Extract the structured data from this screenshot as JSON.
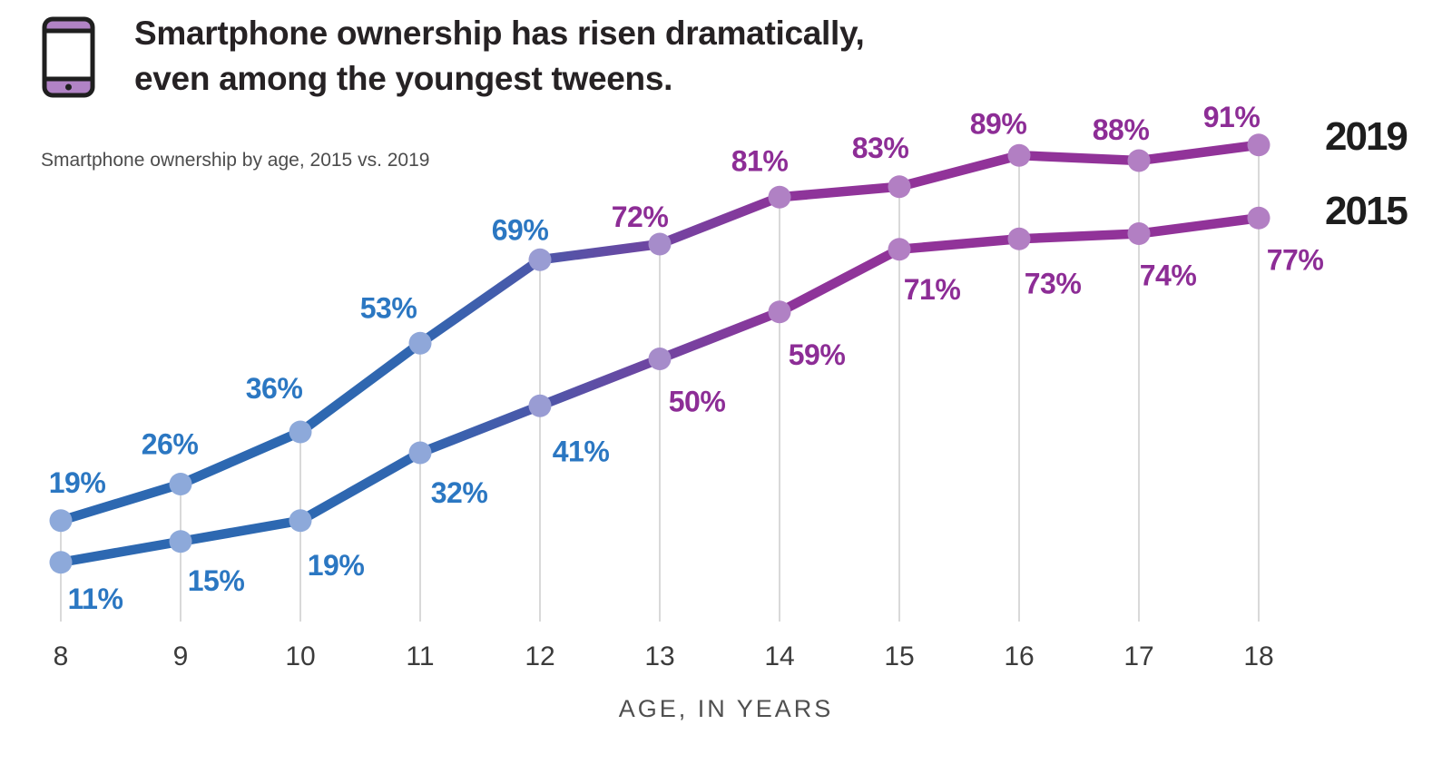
{
  "header": {
    "title_line1": "Smartphone ownership has risen dramatically,",
    "title_line2": "even among the youngest tweens.",
    "subtitle": "Smartphone ownership by age, 2015 vs. 2019",
    "icon": "smartphone-icon"
  },
  "legend": {
    "top_label": "2019",
    "bottom_label": "2015"
  },
  "chart_data": {
    "type": "line",
    "title": "Smartphone ownership has risen dramatically, even among the youngest tweens.",
    "subtitle": "Smartphone ownership by age, 2015 vs. 2019",
    "x": [
      8,
      9,
      10,
      11,
      12,
      13,
      14,
      15,
      16,
      17,
      18
    ],
    "xlabel": "AGE, IN YEARS",
    "unit": "%",
    "ylim": [
      0,
      100
    ],
    "grid": "vertical-gridlines-only",
    "legend_position": "right-of-line-ends",
    "series": [
      {
        "name": "2019",
        "values": [
          19,
          26,
          36,
          53,
          69,
          72,
          81,
          83,
          89,
          88,
          91
        ],
        "label_position": "above"
      },
      {
        "name": "2015",
        "values": [
          11,
          15,
          19,
          32,
          41,
          50,
          59,
          71,
          73,
          74,
          77
        ],
        "label_position": "below-right"
      }
    ],
    "label_color_switch_age": 13,
    "colors": {
      "line_blue": "#2d68b1",
      "line_purple": "#913399",
      "dot_blue": "#8da9da",
      "dot_purple": "#b27fc3",
      "label_blue": "#2b77c2",
      "label_purple": "#8d2d96",
      "gridline": "#d9d9d9",
      "axis_text": "#3b3b3b",
      "legend_text": "#1d1d1d",
      "icon_purple": "#b183c5",
      "icon_outline": "#1f1f1f"
    }
  }
}
